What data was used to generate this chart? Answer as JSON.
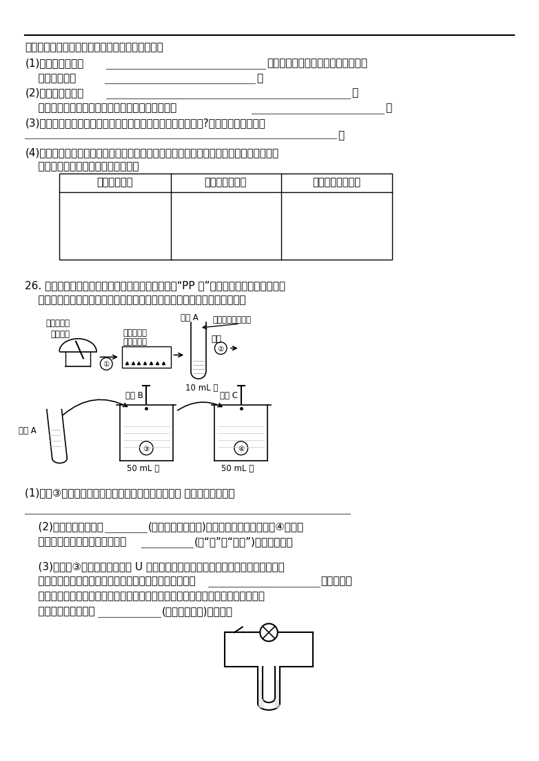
{
  "bg_color": "#ffffff",
  "text_color": "#000000",
  "line1": "请你参与这一探究活动，根据上表回答下列问题。",
  "line2_a": "(1)小宏的猜想二是",
  "line2_b": "如果猜想成立，则产生沉淠的反应的",
  "line3": "    化学方程式为",
  "line4_a": "(2)小宏的猜想三是",
  "line5": "    如果猜想成立，则产生沉淠的反应的化学方程式为",
  "line6": "(3)小宏同学对猜想一所描述的实验现象和作出的结论是否正确?请判断并说明理由。",
  "line7_a": "(4)除了小宏的三种猜想，请你再补充一种猜想，模价上述过程，设计简单的实验方案并验",
  "line7_b": "    证你的猜想，将有关内容填入下表。",
  "table_headers": [
    "你补充的猜想",
    "设计的实验步骤",
    "可能的现象与结论"
  ],
  "q26_line1": "26. 高锄酸钒是日常生活常用的一种杀菌剂，又称为“PP 粉”。它是一种紫黑色固体，取",
  "q26_line2": "    少量固体放人研钔内研磨，做如下图所示实验。试根据上述实验过程填空。",
  "q26_q1": "(1)步骤③将少许高锄酸钒粉末溶于水后得到色溶液， 其中振荀的作用是",
  "q26_q2_a": "    (2)上述实验中，步骤",
  "q26_q2_b": "(填实验步骤的序号)说明物质是可分的；步骤④中溶液",
  "q26_q2_c": "    几乎变为无色，溶液中溶质微粒",
  "q26_q2_d": "(填“是”或“不是”)变得更小了。",
  "q26_q3_a": "    (3)将步骤③所得溶液部分倒人 U 形管内，再加适量水，接入下图所示的电路。闭合",
  "q26_q3_b": "    电键，发现灯泡发光，这是由于高锄酸钒溶于水时生成了",
  "q26_q3_c": "的缘故。过",
  "q26_q3_d": "    一段时间后，在与电源相连的两电极区域溶液的颜色深浅出现差异，这又说明高锄",
  "q26_q3_e": "    酸钒溶液的颜色是由",
  "q26_q3_f": "(填微粒的符号)决定的。"
}
